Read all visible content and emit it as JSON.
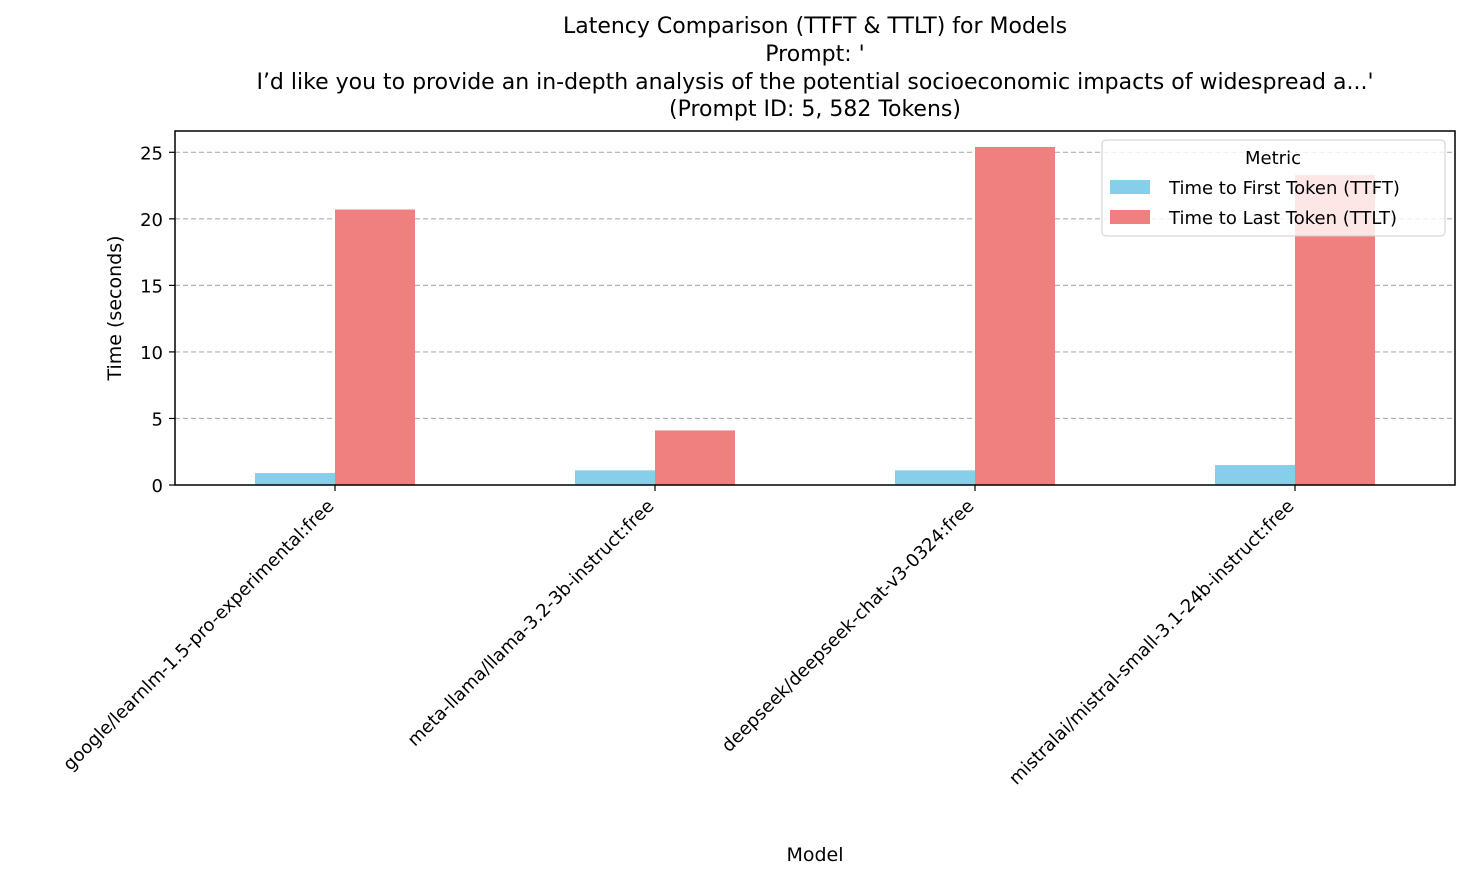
{
  "chart_data": {
    "type": "bar",
    "title_lines": [
      "Latency Comparison (TTFT & TTLT) for Models",
      "Prompt: '",
      "I’d like you to provide an in-depth analysis of the potential socioeconomic impacts of widespread a...'",
      "(Prompt ID: 5, 582 Tokens)"
    ],
    "xlabel": "Model",
    "ylabel": "Time (seconds)",
    "categories": [
      "google/learnlm-1.5-pro-experimental:free",
      "meta-llama/llama-3.2-3b-instruct:free",
      "deepseek/deepseek-chat-v3-0324:free",
      "mistralai/mistral-small-3.1-24b-instruct:free"
    ],
    "series": [
      {
        "name": "Time to First Token (TTFT)",
        "color": "#87ceeb",
        "values": [
          0.9,
          1.1,
          1.1,
          1.5
        ]
      },
      {
        "name": "Time to Last Token (TTLT)",
        "color": "#f08080",
        "values": [
          20.7,
          4.1,
          25.4,
          23.3
        ]
      }
    ],
    "ylim": [
      0,
      26.6
    ],
    "yticks": [
      0,
      5,
      10,
      15,
      20,
      25
    ],
    "grid": "y-dashed",
    "legend": {
      "title": "Metric",
      "placement": "top-right"
    }
  }
}
